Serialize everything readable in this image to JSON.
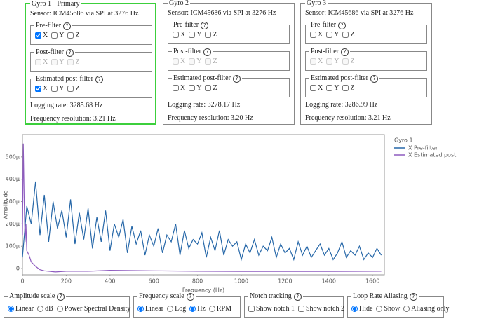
{
  "gyros": [
    {
      "title": "Gyro 1 - Primary",
      "primary": true,
      "sensor": "Sensor: ICM45686 via SPI at 3276 Hz",
      "filters": [
        {
          "name": "Pre-filter",
          "disabled": false,
          "options": [
            {
              "label": "X",
              "checked": true
            },
            {
              "label": "Y",
              "checked": false
            },
            {
              "label": "Z",
              "checked": false
            }
          ]
        },
        {
          "name": "Post-filter",
          "disabled": true,
          "options": [
            {
              "label": "X",
              "checked": false
            },
            {
              "label": "Y",
              "checked": false
            },
            {
              "label": "Z",
              "checked": false
            }
          ]
        },
        {
          "name": "Estimated post-filter",
          "disabled": false,
          "options": [
            {
              "label": "X",
              "checked": true
            },
            {
              "label": "Y",
              "checked": false
            },
            {
              "label": "Z",
              "checked": false
            }
          ]
        }
      ],
      "logging_rate": "Logging rate: 3285.68 Hz",
      "frequency_resolution": "Frequency resolution: 3.21 Hz"
    },
    {
      "title": "Gyro 2",
      "primary": false,
      "sensor": "Sensor: ICM45686 via SPI at 3276 Hz",
      "filters": [
        {
          "name": "Pre-filter",
          "disabled": false,
          "options": [
            {
              "label": "X",
              "checked": false
            },
            {
              "label": "Y",
              "checked": false
            },
            {
              "label": "Z",
              "checked": false
            }
          ]
        },
        {
          "name": "Post-filter",
          "disabled": true,
          "options": [
            {
              "label": "X",
              "checked": false
            },
            {
              "label": "Y",
              "checked": false
            },
            {
              "label": "Z",
              "checked": false
            }
          ]
        },
        {
          "name": "Estimated post-filter",
          "disabled": false,
          "options": [
            {
              "label": "X",
              "checked": false
            },
            {
              "label": "Y",
              "checked": false
            },
            {
              "label": "Z",
              "checked": false
            }
          ]
        }
      ],
      "logging_rate": "Logging rate: 3278.17 Hz",
      "frequency_resolution": "Frequency resolution: 3.20 Hz"
    },
    {
      "title": "Gyro 3",
      "primary": false,
      "sensor": "Sensor: ICM45686 via SPI at 3276 Hz",
      "filters": [
        {
          "name": "Pre-filter",
          "disabled": false,
          "options": [
            {
              "label": "X",
              "checked": false
            },
            {
              "label": "Y",
              "checked": false
            },
            {
              "label": "Z",
              "checked": false
            }
          ]
        },
        {
          "name": "Post-filter",
          "disabled": true,
          "options": [
            {
              "label": "X",
              "checked": false
            },
            {
              "label": "Y",
              "checked": false
            },
            {
              "label": "Z",
              "checked": false
            }
          ]
        },
        {
          "name": "Estimated post-filter",
          "disabled": false,
          "options": [
            {
              "label": "X",
              "checked": false
            },
            {
              "label": "Y",
              "checked": false
            },
            {
              "label": "Z",
              "checked": false
            }
          ]
        }
      ],
      "logging_rate": "Logging rate: 3286.99 Hz",
      "frequency_resolution": "Frequency resolution: 3.21 Hz"
    }
  ],
  "chart_data": {
    "type": "line",
    "x_label": "Frequency (Hz)",
    "y_label": "Amplitude",
    "legend_title": "Gyro 1",
    "xlim": [
      0,
      1654
    ],
    "xticks": [
      0,
      200,
      400,
      600,
      800,
      1000,
      1200,
      1400,
      1600
    ],
    "ylim": [
      -28,
      600
    ],
    "yticks": [
      0,
      {
        "value": 100,
        "label": "100µ"
      },
      {
        "value": 200,
        "label": "200µ"
      },
      {
        "value": 300,
        "label": "300µ"
      },
      {
        "value": 400,
        "label": "400µ"
      },
      {
        "value": 500,
        "label": "500µ"
      }
    ],
    "series": [
      {
        "name": "X Pre-filter",
        "color": "#2667a8",
        "x": [
          0,
          20,
          40,
          60,
          80,
          100,
          120,
          140,
          160,
          180,
          200,
          220,
          240,
          260,
          280,
          300,
          320,
          340,
          360,
          380,
          400,
          420,
          440,
          460,
          480,
          500,
          520,
          540,
          560,
          580,
          600,
          620,
          640,
          660,
          680,
          700,
          720,
          740,
          760,
          780,
          800,
          820,
          840,
          860,
          880,
          900,
          920,
          940,
          960,
          980,
          1000,
          1020,
          1040,
          1060,
          1080,
          1100,
          1120,
          1140,
          1160,
          1180,
          1200,
          1220,
          1240,
          1260,
          1280,
          1300,
          1320,
          1340,
          1360,
          1380,
          1400,
          1420,
          1440,
          1460,
          1480,
          1500,
          1520,
          1540,
          1560,
          1580,
          1600,
          1620,
          1640
        ],
        "values": [
          50,
          280,
          200,
          390,
          150,
          330,
          120,
          300,
          180,
          260,
          140,
          310,
          110,
          250,
          130,
          270,
          90,
          230,
          120,
          260,
          80,
          200,
          140,
          220,
          70,
          190,
          110,
          170,
          60,
          150,
          100,
          180,
          70,
          150,
          120,
          200,
          60,
          170,
          90,
          130,
          110,
          160,
          50,
          140,
          80,
          170,
          60,
          130,
          100,
          120,
          40,
          110,
          70,
          130,
          60,
          100,
          80,
          140,
          50,
          110,
          70,
          90,
          40,
          120,
          60,
          100,
          50,
          80,
          110,
          60,
          90,
          40,
          70,
          120,
          50,
          80,
          60,
          100,
          40,
          70,
          50,
          90,
          60
        ]
      },
      {
        "name": "X Estimated post",
        "color": "#8e5bbf",
        "x": [
          0,
          4,
          8,
          12,
          16,
          20,
          30,
          40,
          60,
          80,
          100,
          150,
          200,
          300,
          400,
          600,
          800,
          1000,
          1200,
          1400,
          1640
        ],
        "values": [
          150,
          560,
          300,
          120,
          200,
          80,
          60,
          30,
          10,
          -5,
          -10,
          -15,
          -12,
          -12,
          -8,
          -10,
          -12,
          -13,
          -13,
          -13,
          -12
        ]
      }
    ]
  },
  "controls": [
    {
      "title": "Amplitude scale",
      "kind": "radio",
      "options": [
        {
          "label": "Linear",
          "checked": true
        },
        {
          "label": "dB",
          "checked": false
        },
        {
          "label": "Power Spectral Density",
          "checked": false
        }
      ]
    },
    {
      "title": "Frequency scale",
      "kind": "radio",
      "options": [
        {
          "label": "Linear",
          "checked": true
        },
        {
          "label": "Log",
          "checked": false
        },
        {
          "label": "Hz",
          "checked": true
        },
        {
          "label": "RPM",
          "checked": false
        }
      ]
    },
    {
      "title": "Notch tracking",
      "kind": "checkbox",
      "options": [
        {
          "label": "Show notch 1",
          "checked": false
        },
        {
          "label": "Show notch 2",
          "checked": false
        }
      ]
    },
    {
      "title": "Loop Rate Aliasing",
      "kind": "radio",
      "options": [
        {
          "label": "Hide",
          "checked": true
        },
        {
          "label": "Show",
          "checked": false
        },
        {
          "label": "Aliasing only",
          "checked": false
        }
      ]
    }
  ]
}
